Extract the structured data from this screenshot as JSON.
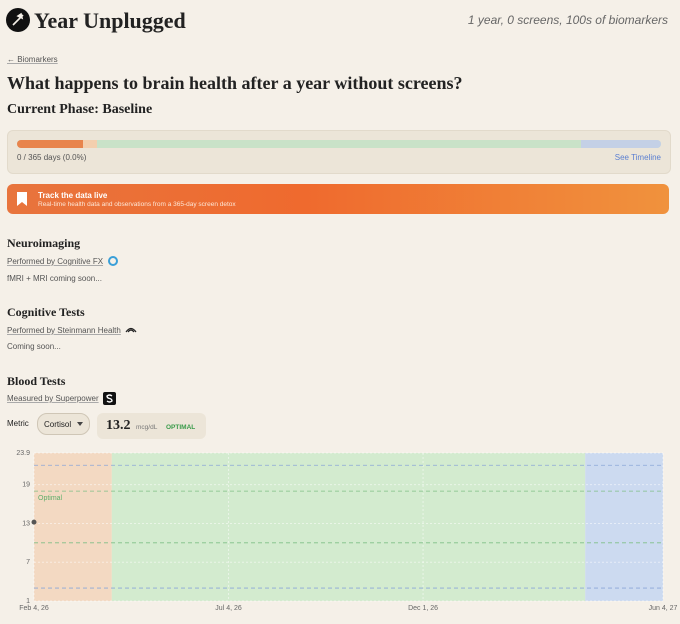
{
  "header": {
    "brand": "Year Unplugged",
    "tagline": "1 year, 0 screens, 100s of biomarkers"
  },
  "breadcrumb": "← Biomarkers",
  "title": "What happens to brain health after a year without screens?",
  "phase": "Current Phase: Baseline",
  "progress": {
    "text": "0 / 365 days (0.0%)",
    "link": "See Timeline"
  },
  "banner": {
    "title": "Track the data live",
    "subtitle": "Real-time health data and observations from a 365-day screen detox"
  },
  "sections": [
    {
      "title": "Neuroimaging",
      "provider": "Performed by Cognitive FX",
      "note": "fMRI + MRI coming soon..."
    },
    {
      "title": "Cognitive Tests",
      "provider": "Performed by Steinmann Health",
      "note": "Coming soon..."
    }
  ],
  "blood_tests": {
    "title": "Blood Tests",
    "provider": "Measured by Superpower",
    "metric_label": "Metric",
    "metric": "Cortisol",
    "reading": "13.2",
    "unit": "mcg/dL",
    "status": "OPTIMAL"
  },
  "chart_data": {
    "type": "scatter",
    "annotation": "Optimal",
    "x": [
      0
    ],
    "series": [
      {
        "color": "#555555",
        "values": [
          13.2
        ]
      }
    ],
    "xlim": [
      0,
      485
    ],
    "xticks": [
      {
        "value": 0,
        "label": "Feb 4, 26"
      },
      {
        "value": 150,
        "label": "Jul 4, 26"
      },
      {
        "value": 300,
        "label": "Dec 1, 26"
      },
      {
        "value": 485,
        "label": "Jun 4, 27"
      }
    ],
    "ylim": [
      1,
      23.9
    ],
    "yticks": [
      1,
      7,
      13,
      19,
      23.9
    ],
    "bands": [
      {
        "start": 0,
        "end": 60,
        "color": "#f3d9c2"
      },
      {
        "start": 60,
        "end": 425,
        "color": "#d3ebcf"
      },
      {
        "start": 425,
        "end": 485,
        "color": "#ccdaf0"
      }
    ],
    "reference_lines": [
      {
        "value": 22,
        "color": "#8aa6d8"
      },
      {
        "value": 18,
        "color": "#7fbf86"
      },
      {
        "value": 10,
        "color": "#7fbf86"
      },
      {
        "value": 3,
        "color": "#8aa6d8"
      }
    ],
    "grid": true
  }
}
